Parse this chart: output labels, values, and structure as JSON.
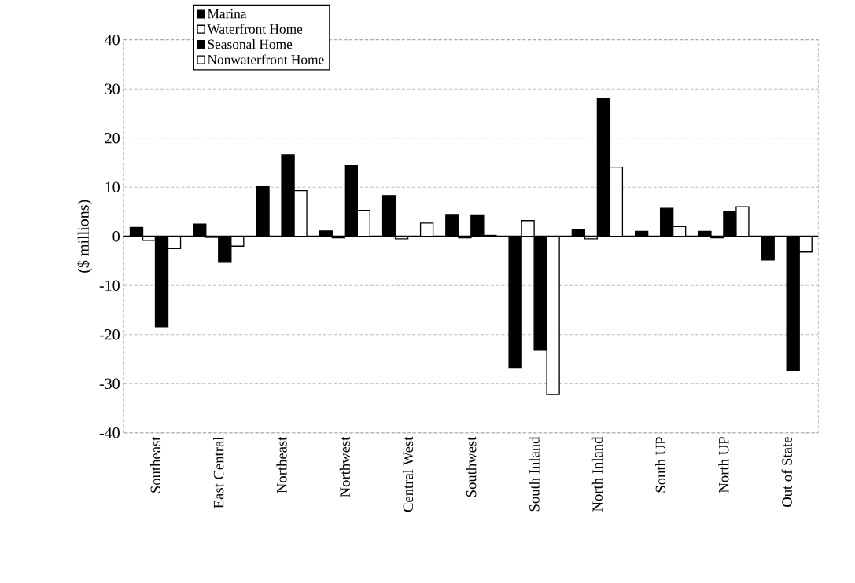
{
  "chart_data": {
    "type": "bar",
    "ylabel": "($ millions)",
    "categories": [
      "Southeast",
      "East Central",
      "Northeast",
      "Northwest",
      "Central West",
      "Southwest",
      "South Inland",
      "North Inland",
      "South UP",
      "North UP",
      "Out of State"
    ],
    "series": [
      {
        "name": "Marina",
        "color": "#000000",
        "values": [
          1.8,
          2.5,
          10.1,
          1.1,
          8.3,
          4.3,
          -26.7,
          1.3,
          1.0,
          1.0,
          -4.8
        ]
      },
      {
        "name": "Waterfront Home",
        "color": "#ffffff",
        "values": [
          -0.8,
          -0.2,
          null,
          -0.3,
          -0.5,
          -0.3,
          3.2,
          -0.5,
          null,
          -0.3,
          null
        ]
      },
      {
        "name": "Seasonal Home",
        "color": "#000000",
        "values": [
          -18.4,
          -5.3,
          16.6,
          14.4,
          null,
          4.2,
          -23.2,
          28.0,
          5.7,
          5.1,
          -27.3
        ]
      },
      {
        "name": "Nonwaterfront Home",
        "color": "#ffffff",
        "values": [
          -2.5,
          -2.0,
          9.3,
          5.3,
          2.7,
          0.2,
          -32.2,
          14.1,
          2.0,
          6.0,
          -3.2
        ]
      }
    ],
    "ylim": [
      -40,
      40
    ],
    "yticks": [
      -40,
      -30,
      -20,
      -10,
      0,
      10,
      20,
      30,
      40
    ],
    "grid": "y",
    "legend": "top left"
  }
}
